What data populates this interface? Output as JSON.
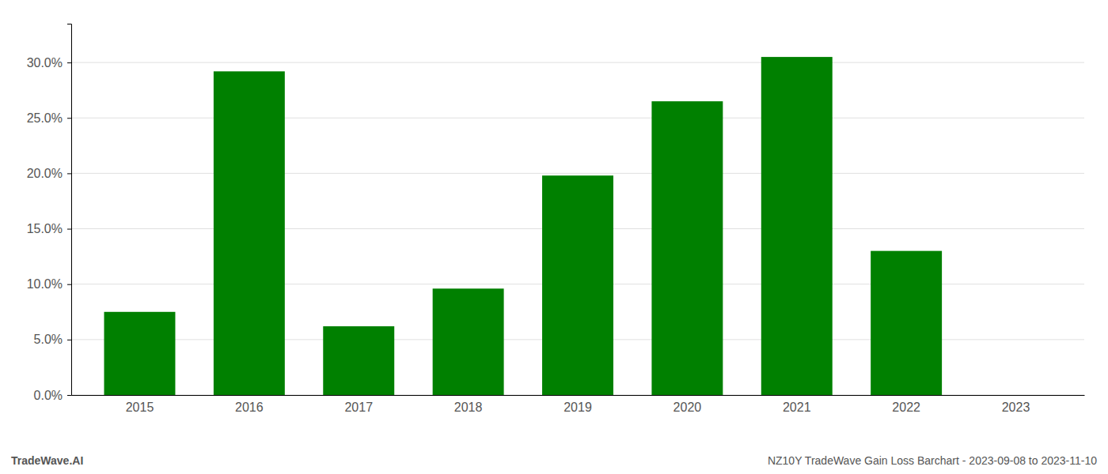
{
  "chart_data": {
    "type": "bar",
    "categories": [
      "2015",
      "2016",
      "2017",
      "2018",
      "2019",
      "2020",
      "2021",
      "2022",
      "2023"
    ],
    "values": [
      0.075,
      0.292,
      0.062,
      0.096,
      0.198,
      0.265,
      0.305,
      0.13,
      null
    ],
    "color": "#008000",
    "ylim": [
      0,
      0.335
    ],
    "yticks": [
      {
        "value": 0.0,
        "label": "0.0%"
      },
      {
        "value": 0.05,
        "label": "5.0%"
      },
      {
        "value": 0.1,
        "label": "10.0%"
      },
      {
        "value": 0.15,
        "label": "15.0%"
      },
      {
        "value": 0.2,
        "label": "20.0%"
      },
      {
        "value": 0.25,
        "label": "25.0%"
      },
      {
        "value": 0.3,
        "label": "30.0%"
      }
    ],
    "grid": true,
    "annotations": [
      "TradeWave.AI",
      "NZ10Y TradeWave Gain Loss Barchart - 2023-09-08 to 2023-11-10"
    ]
  }
}
